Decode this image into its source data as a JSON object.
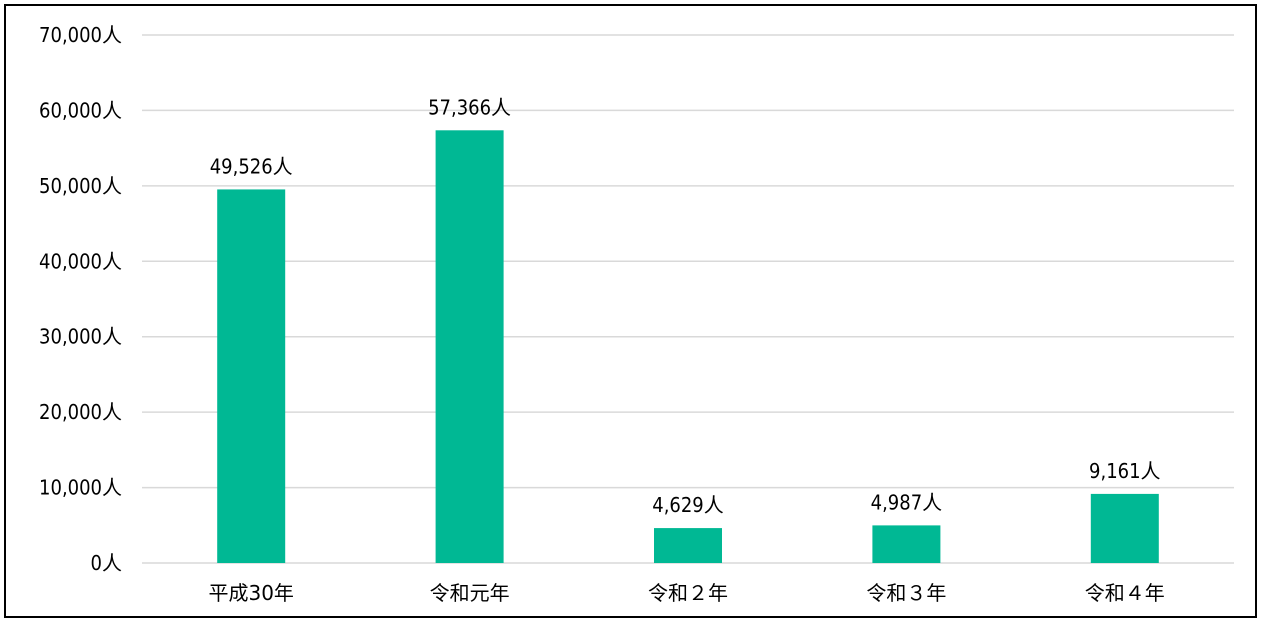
{
  "chart_data": {
    "type": "bar",
    "categories": [
      "平成30年",
      "令和元年",
      "令和２年",
      "令和３年",
      "令和４年"
    ],
    "values": [
      49526,
      57366,
      4629,
      4987,
      9161
    ],
    "data_labels": [
      "49,526人",
      "57,366人",
      "4,629人",
      "4,987人",
      "9,161人"
    ],
    "ylim": [
      0,
      70000
    ],
    "y_ticks": [
      {
        "value": 0,
        "label": "0人"
      },
      {
        "value": 10000,
        "label": "10,000人"
      },
      {
        "value": 20000,
        "label": "20,000人"
      },
      {
        "value": 30000,
        "label": "30,000人"
      },
      {
        "value": 40000,
        "label": "40,000人"
      },
      {
        "value": 50000,
        "label": "50,000人"
      },
      {
        "value": 60000,
        "label": "60,000人"
      },
      {
        "value": 70000,
        "label": "70,000人"
      }
    ],
    "grid": true,
    "legend": "none",
    "bar_color": "#00b894",
    "grid_color": "#d9d9d9"
  }
}
